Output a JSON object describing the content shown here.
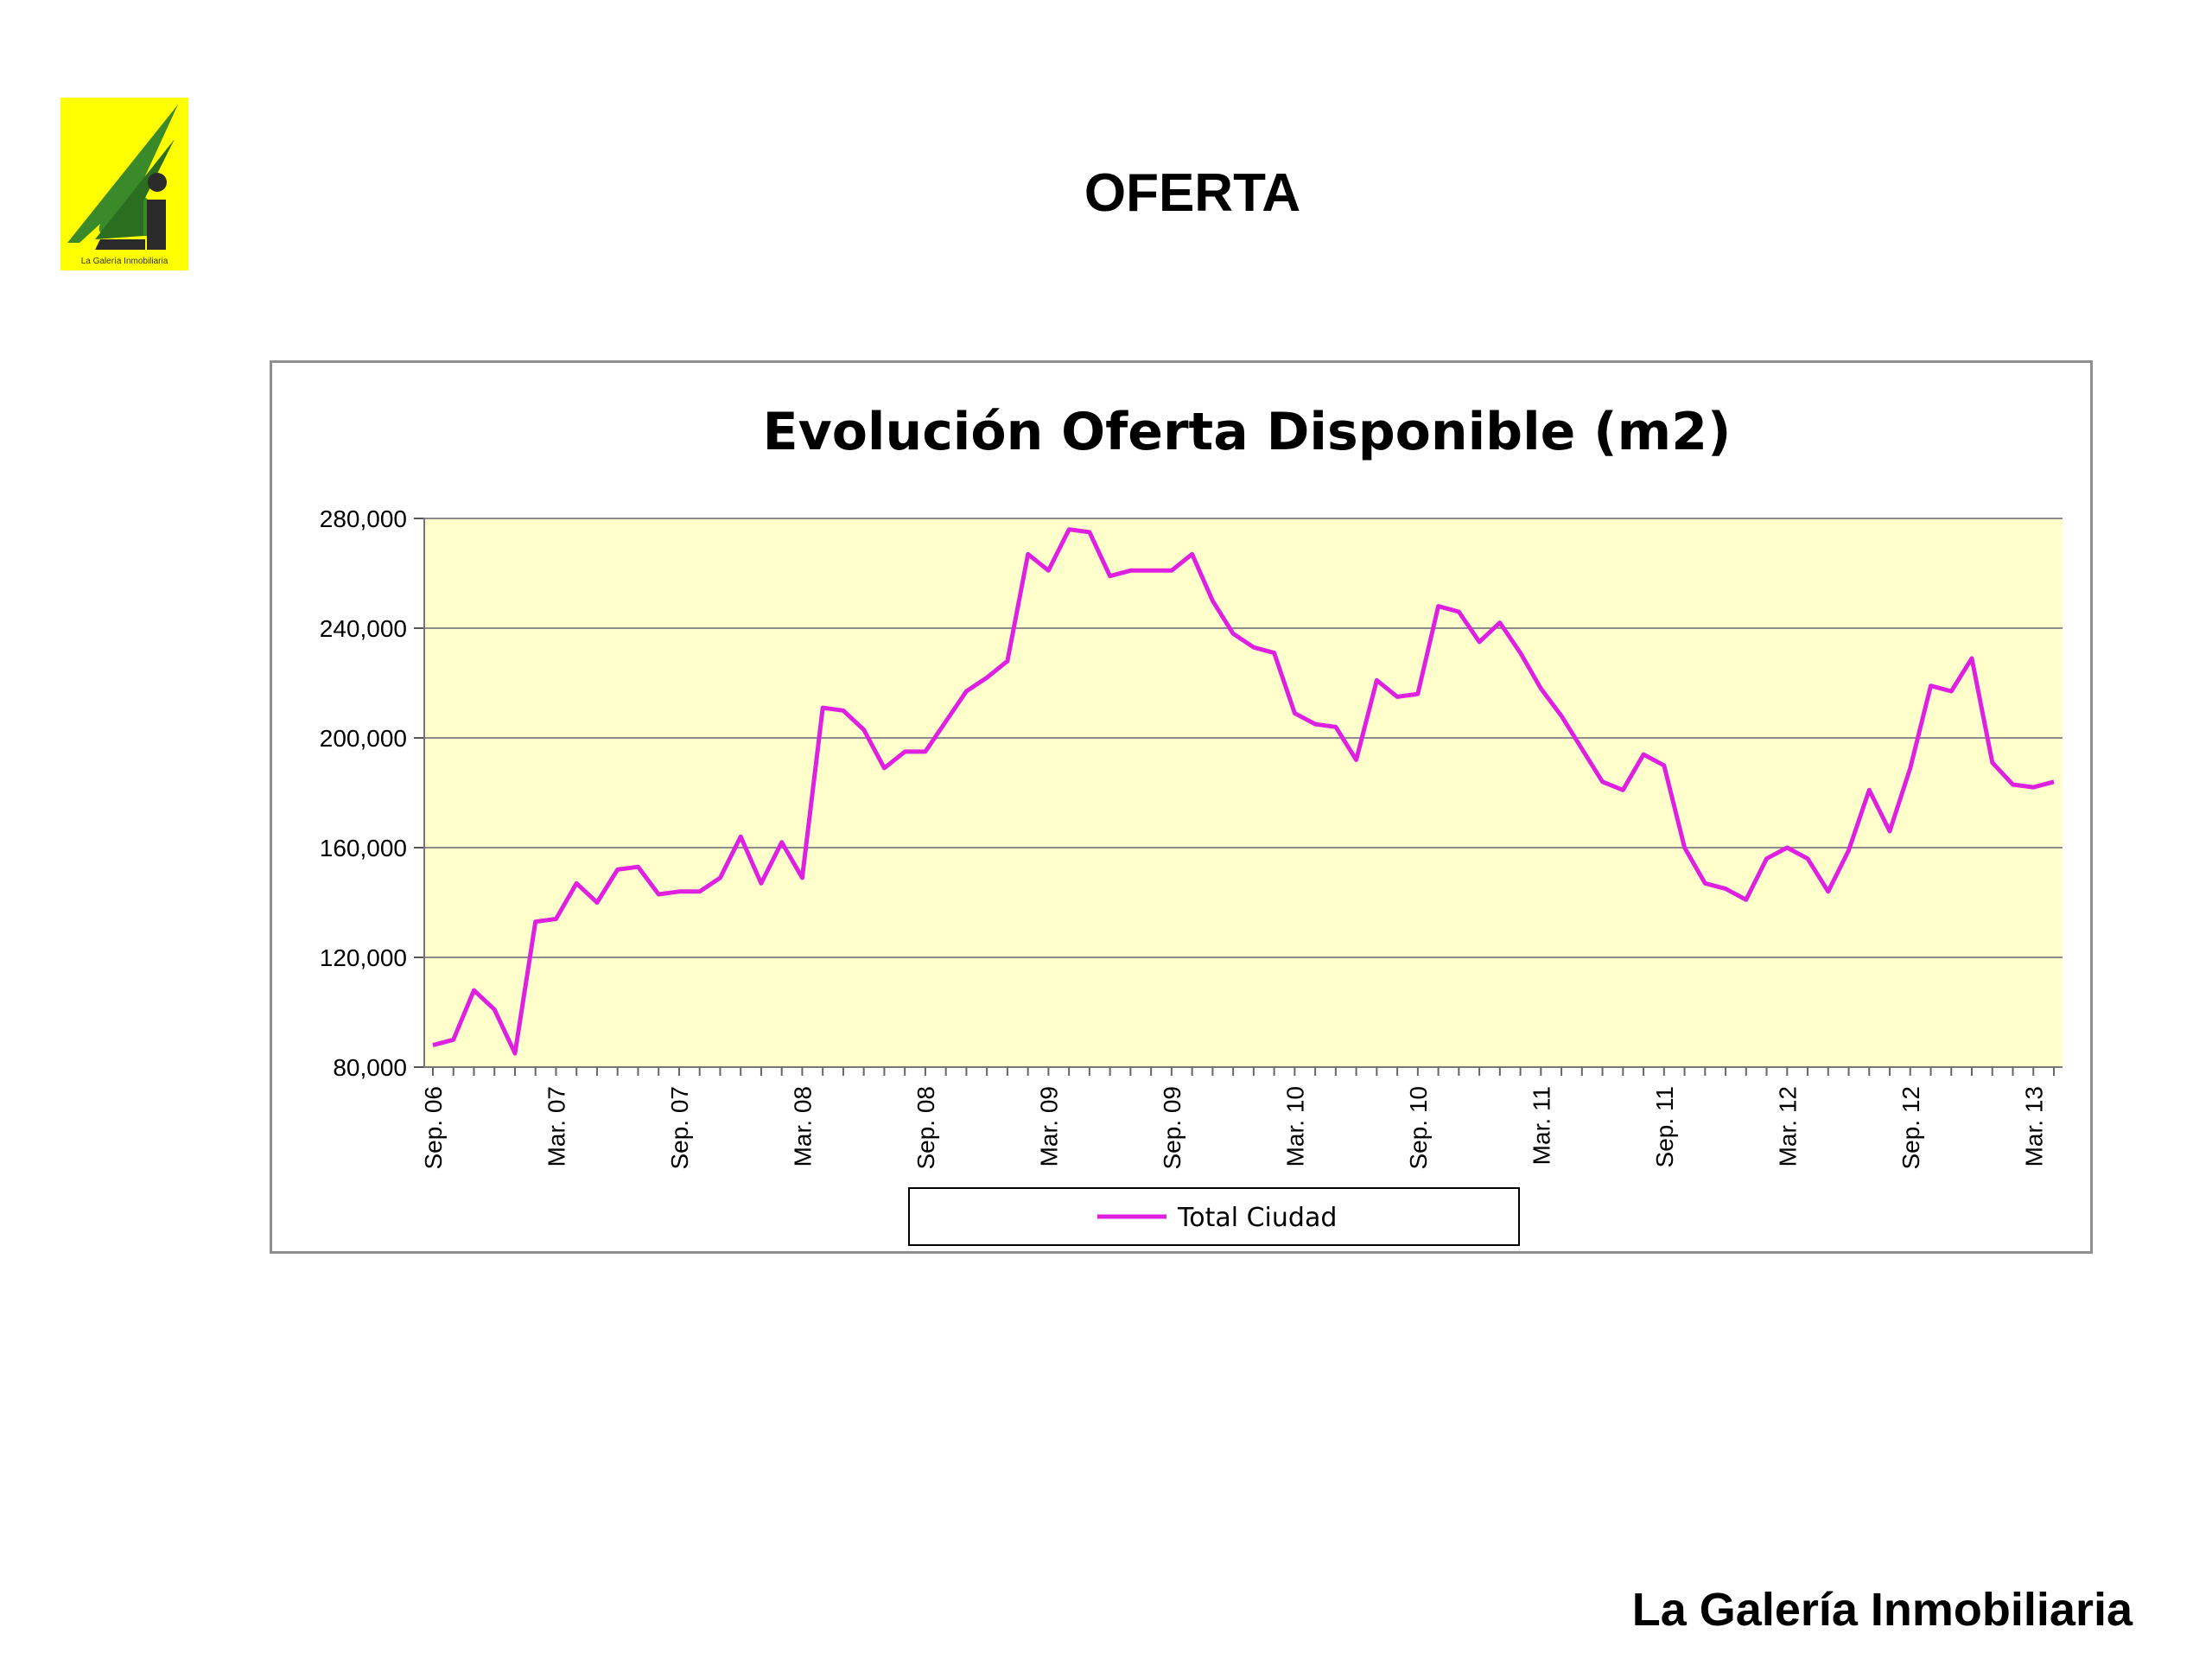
{
  "slide": {
    "title": "OFERTA",
    "footer": "La Galería Inmobiliaria",
    "logo_caption": "La Galería Inmobiliaria"
  },
  "colors": {
    "logo_background": "#FFFF00",
    "logo_mark": "#2E7D32",
    "plot_background": "#FFFFCC",
    "series_line": "#E020E0",
    "gridline": "#8C8C8C"
  },
  "chart_data": {
    "type": "line",
    "title": "Evolución Oferta Disponible (m2)",
    "xlabel": "",
    "ylabel": "",
    "ylim": [
      80000,
      280000
    ],
    "yticks": [
      "80,000",
      "120,000",
      "160,000",
      "200,000",
      "240,000",
      "280,000"
    ],
    "ytick_values": [
      80000,
      120000,
      160000,
      200000,
      240000,
      280000
    ],
    "grid": true,
    "legend_position": "bottom",
    "x_tick_labels": [
      "Sep. 06",
      "Mar. 07",
      "Sep. 07",
      "Mar. 08",
      "Sep. 08",
      "Mar. 09",
      "Sep. 09",
      "Mar. 10",
      "Sep. 10",
      "Mar. 11",
      "Sep. 11",
      "Mar. 12",
      "Sep. 12",
      "Mar. 13"
    ],
    "x_tick_label_index": [
      0,
      6,
      12,
      18,
      24,
      30,
      36,
      42,
      48,
      54,
      60,
      66,
      72,
      78
    ],
    "series": [
      {
        "name": "Total Ciudad",
        "values": [
          88000,
          90000,
          108000,
          101000,
          85000,
          133000,
          134000,
          147000,
          140000,
          152000,
          153000,
          143000,
          144000,
          144000,
          149000,
          164000,
          147000,
          162000,
          149000,
          211000,
          210000,
          203000,
          189000,
          195000,
          195000,
          206000,
          217000,
          222000,
          228000,
          267000,
          261000,
          276000,
          275000,
          259000,
          261000,
          261000,
          261000,
          267000,
          250000,
          238000,
          233000,
          231000,
          209000,
          205000,
          204000,
          192000,
          221000,
          215000,
          216000,
          248000,
          246000,
          235000,
          242000,
          231000,
          218000,
          208000,
          196000,
          184000,
          181000,
          194000,
          190000,
          160000,
          147000,
          145000,
          141000,
          156000,
          160000,
          156000,
          144000,
          159000,
          181000,
          166000,
          189000,
          219000,
          217000,
          229000,
          191000,
          183000,
          182000,
          184000
        ]
      }
    ]
  }
}
